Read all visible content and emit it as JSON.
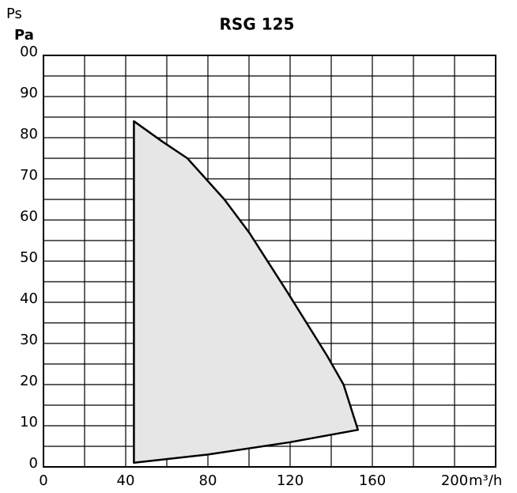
{
  "chart_data": {
    "type": "area",
    "title": "RSG 125",
    "ylabel_top": "Ps",
    "ylabel": "Pa",
    "xlabel": "m³/h",
    "x": [
      44,
      58,
      70,
      88,
      100,
      118,
      138,
      146,
      153,
      120,
      80,
      44
    ],
    "y": [
      84,
      79,
      75,
      65,
      57,
      43,
      27,
      20,
      9,
      6,
      3,
      1
    ],
    "color": "#e6e6e6",
    "xlim": [
      0,
      220
    ],
    "xticks": [
      0,
      40,
      80,
      120,
      160,
      200
    ],
    "xminorticks": [
      20,
      60,
      100,
      140,
      180
    ],
    "ylim": [
      0,
      100
    ],
    "yticks": [
      0,
      10,
      20,
      30,
      40,
      50,
      60,
      70,
      80,
      90,
      {
        "value": 100,
        "label": "00"
      }
    ],
    "yminorticks": [
      5,
      15,
      25,
      35,
      45,
      55,
      65,
      75,
      85,
      95
    ],
    "grid": true
  }
}
